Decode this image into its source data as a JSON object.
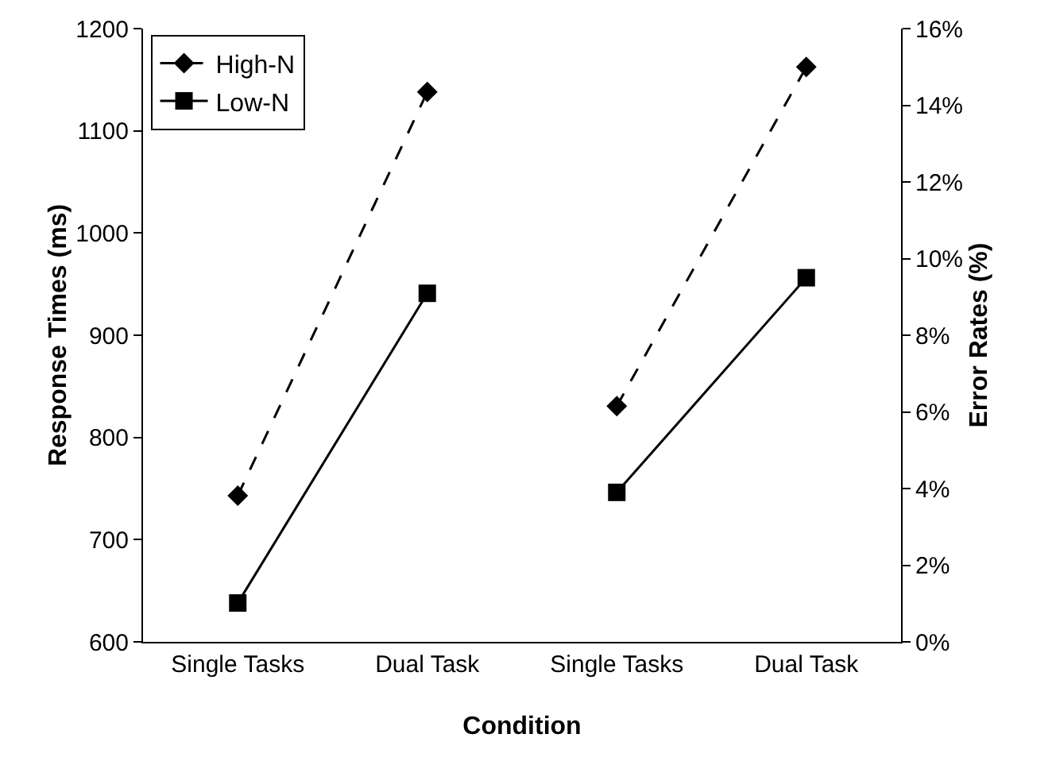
{
  "chart_data": {
    "type": "line",
    "xlabel": "Condition",
    "ylabel": "Response Times (ms)",
    "y2label": "Error Rates (%)",
    "categories": [
      "Single Tasks",
      "Dual Task",
      "Single Tasks",
      "Dual Task"
    ],
    "series": [
      {
        "name": "High-N",
        "color": "#000000",
        "values": [
          743,
          1138,
          null,
          null
        ],
        "marker": "diamond",
        "line_style": "dashed"
      },
      {
        "name": "Low-N",
        "color": "#000000",
        "values": [
          638,
          941,
          null,
          null
        ],
        "marker": "square",
        "line_style": "solid"
      },
      {
        "color": "#000000",
        "values": [
          null,
          null,
          6.15,
          15.0
        ],
        "marker": "diamond",
        "line_style": "dashed",
        "axis": "y2"
      },
      {
        "color": "#000000",
        "values": [
          null,
          null,
          3.9,
          9.5
        ],
        "marker": "square",
        "line_style": "solid",
        "axis": "y2"
      }
    ],
    "ylim": [
      600,
      1200
    ],
    "yticks": [
      600,
      700,
      800,
      900,
      1000,
      1100,
      1200
    ],
    "y2lim": [
      0,
      16
    ],
    "y2ticks": [
      {
        "value": 0,
        "label": "0%"
      },
      {
        "value": 2,
        "label": "2%"
      },
      {
        "value": 4,
        "label": "4%"
      },
      {
        "value": 6,
        "label": "6%"
      },
      {
        "value": 8,
        "label": "8%"
      },
      {
        "value": 10,
        "label": "10%"
      },
      {
        "value": 12,
        "label": "12%"
      },
      {
        "value": 14,
        "label": "14%"
      },
      {
        "value": 16,
        "label": "16%"
      }
    ],
    "grid": false,
    "legend": "top left"
  }
}
